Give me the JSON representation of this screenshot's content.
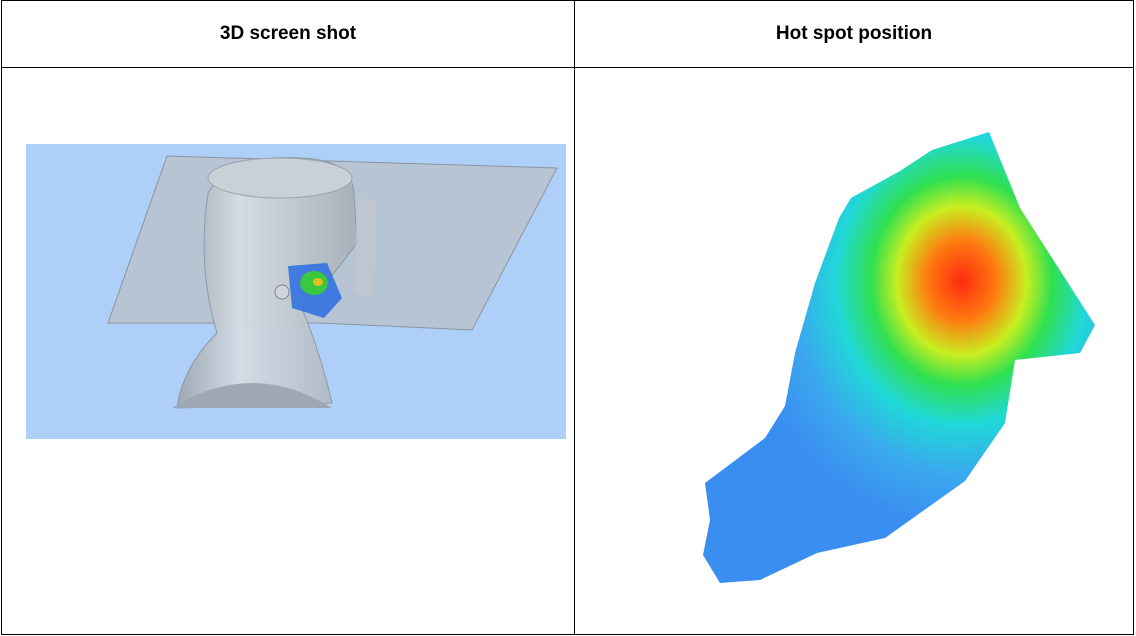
{
  "table": {
    "headers": [
      "3D screen shot",
      "Hot spot position"
    ]
  }
}
